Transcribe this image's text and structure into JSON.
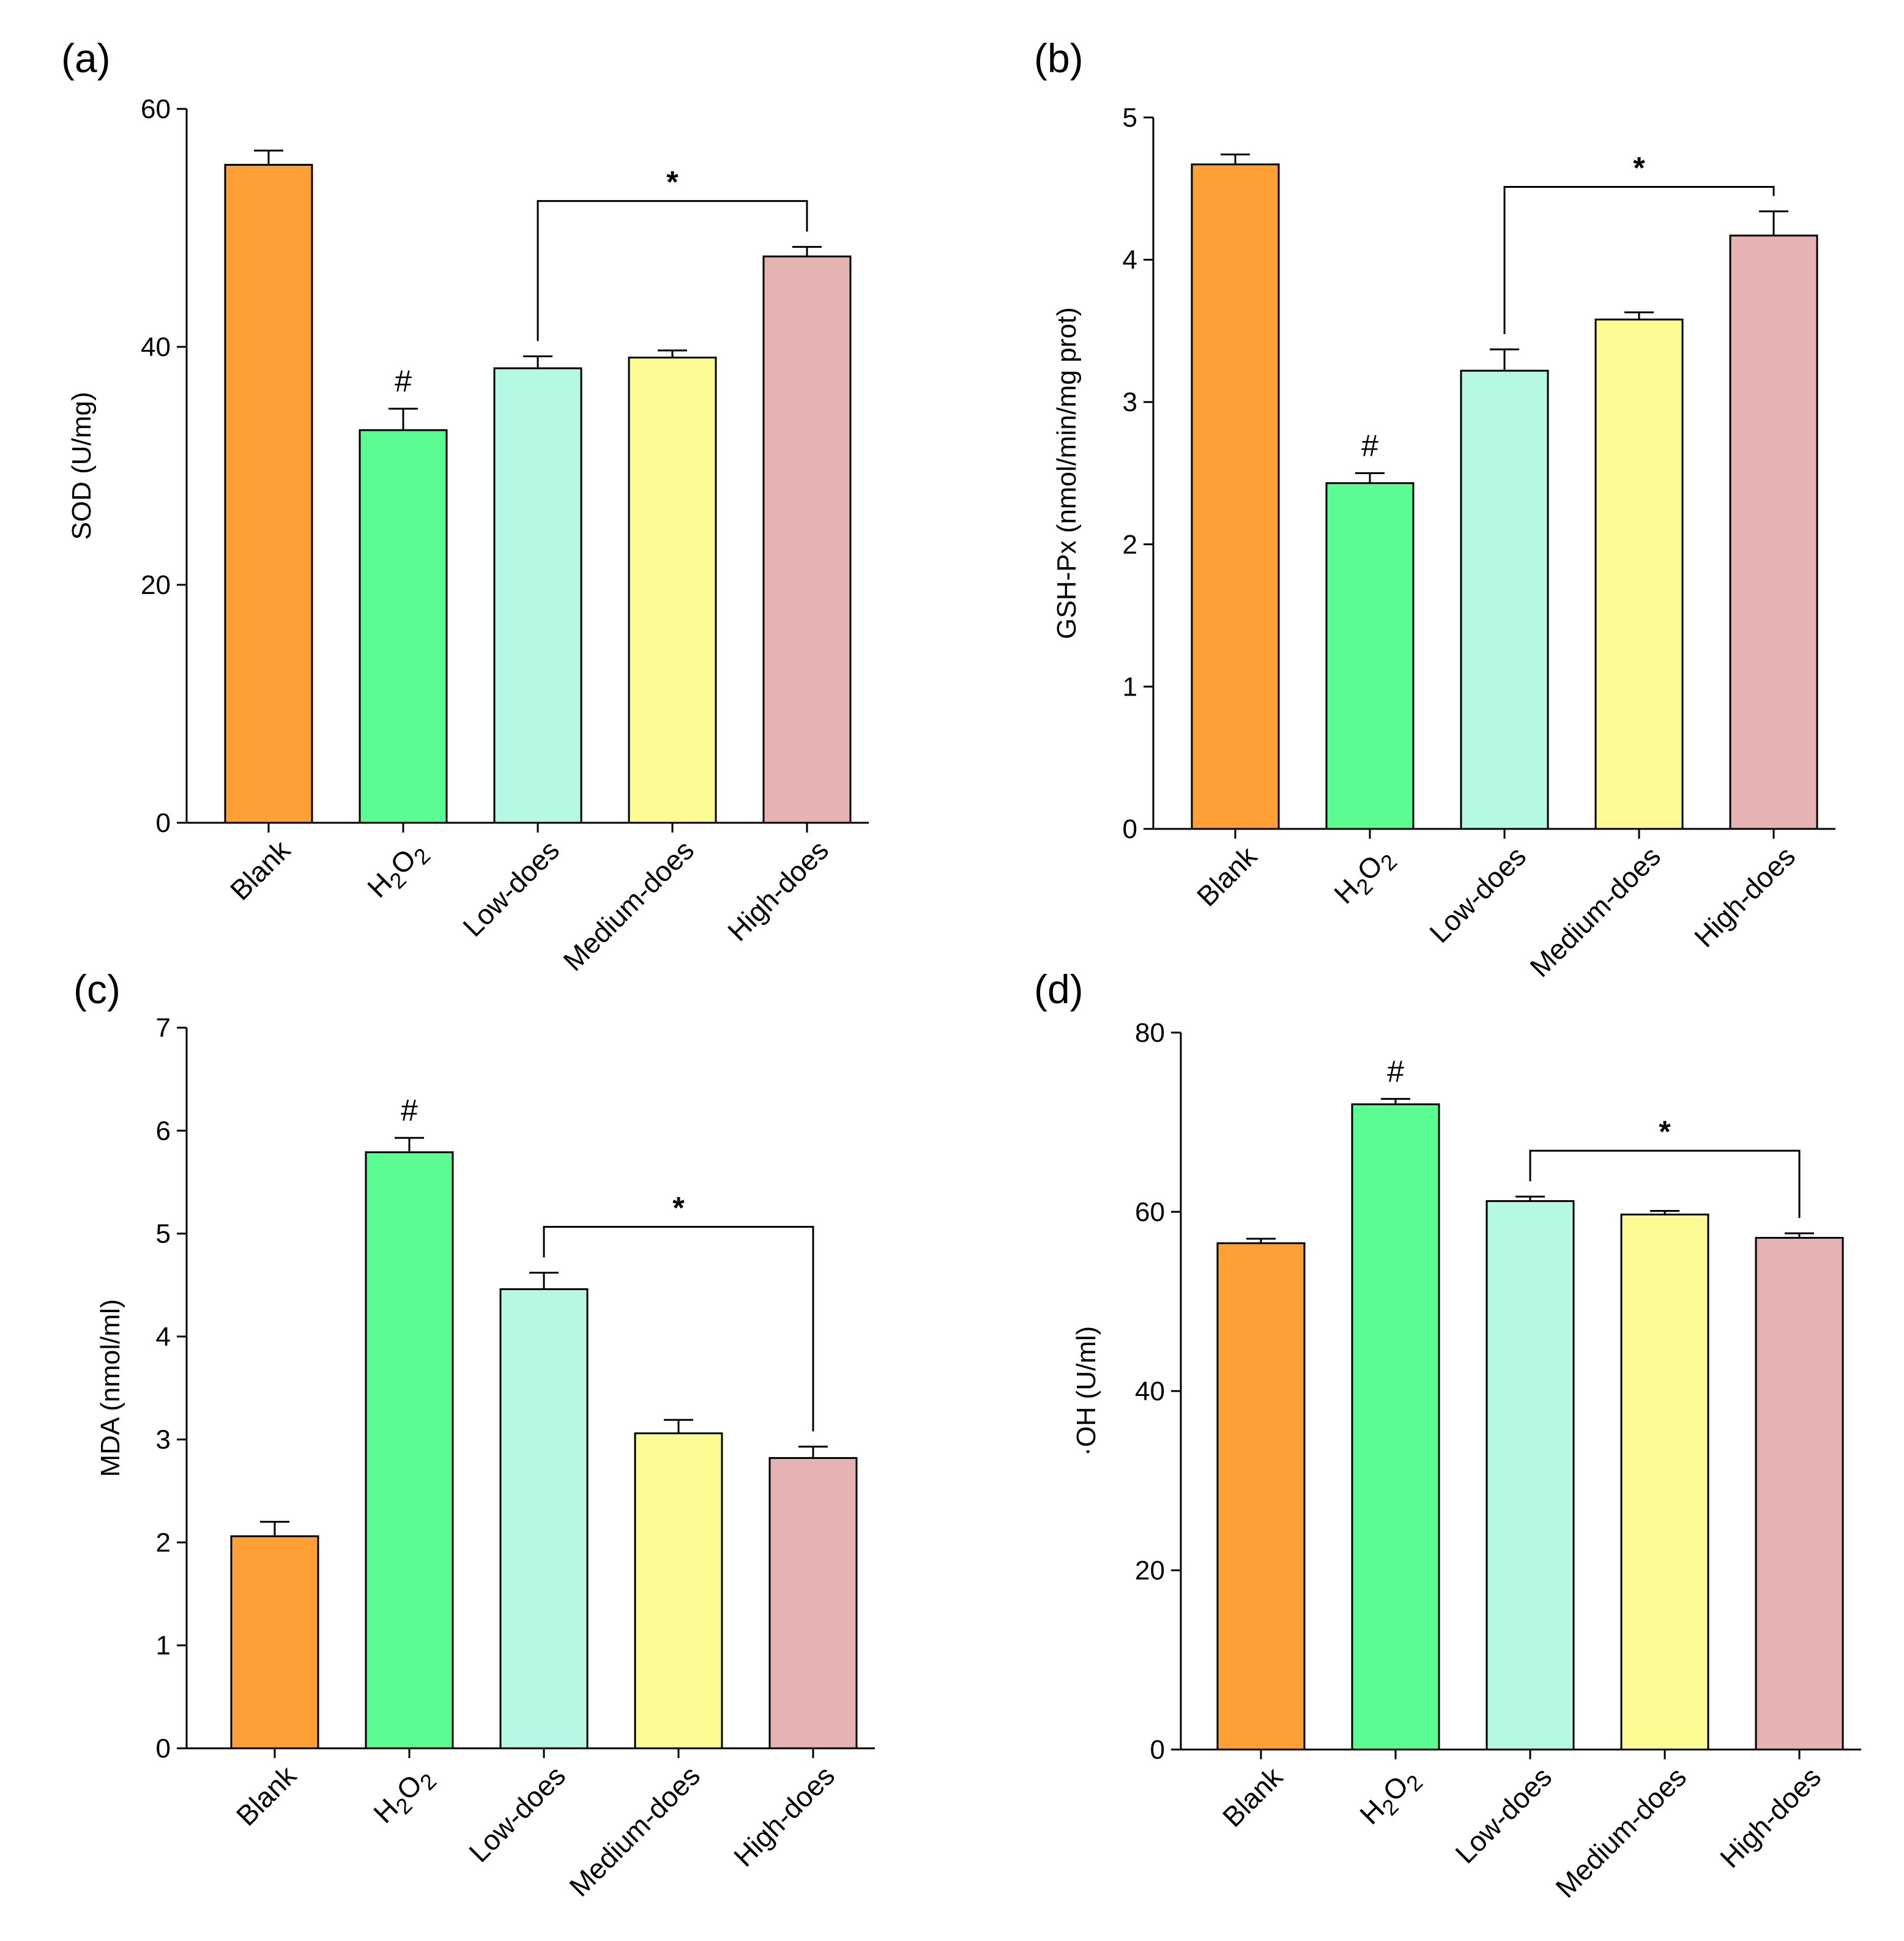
{
  "colors": {
    "Blank": "#fea036",
    "H2O2": "#5bfd92",
    "Low-does": "#b5f8e4",
    "Medium-does": "#fdfc94",
    "High-does": "#e6b3b3"
  },
  "chart_data": [
    {
      "panel": "(a)",
      "type": "bar",
      "categories": [
        "Blank",
        "H2O2",
        "Low-does",
        "Medium-does",
        "High-does"
      ],
      "values": [
        55.3,
        33.0,
        38.2,
        39.1,
        47.6
      ],
      "errors": [
        1.2,
        1.8,
        1.0,
        0.6,
        0.8
      ],
      "ylabel": "SOD (U/mg)",
      "ylim": [
        0,
        60
      ],
      "yticks": [
        0,
        20,
        40,
        60
      ],
      "annotations": [
        {
          "text": "#",
          "category": "H2O2"
        }
      ],
      "significance": {
        "from": "Low-does",
        "to": "High-does",
        "text": "*"
      }
    },
    {
      "panel": "(b)",
      "type": "bar",
      "categories": [
        "Blank",
        "H2O2",
        "Low-does",
        "Medium-does",
        "High-does"
      ],
      "values": [
        4.67,
        2.43,
        3.22,
        3.58,
        4.17
      ],
      "errors": [
        0.07,
        0.07,
        0.15,
        0.05,
        0.17
      ],
      "ylabel": "GSH-Px (nmol/min/mg prot)",
      "ylim": [
        0,
        5
      ],
      "yticks": [
        0,
        1,
        2,
        3,
        4,
        5
      ],
      "annotations": [
        {
          "text": "#",
          "category": "H2O2"
        }
      ],
      "significance": {
        "from": "Low-does",
        "to": "High-does",
        "text": "*"
      }
    },
    {
      "panel": "(c)",
      "type": "bar",
      "categories": [
        "Blank",
        "H2O2",
        "Low-does",
        "Medium-does",
        "High-does"
      ],
      "values": [
        2.06,
        5.79,
        4.46,
        3.06,
        2.82
      ],
      "errors": [
        0.14,
        0.14,
        0.16,
        0.13,
        0.11
      ],
      "ylabel": "MDA (nmol/ml)",
      "ylim": [
        0,
        7
      ],
      "yticks": [
        0,
        1,
        2,
        3,
        4,
        5,
        6,
        7
      ],
      "annotations": [
        {
          "text": "#",
          "category": "H2O2"
        }
      ],
      "significance": {
        "from": "Low-does",
        "to": "High-does",
        "text": "*"
      }
    },
    {
      "panel": "(d)",
      "type": "bar",
      "categories": [
        "Blank",
        "H2O2",
        "Low-does",
        "Medium-does",
        "High-does"
      ],
      "values": [
        56.5,
        72.0,
        61.2,
        59.7,
        57.1
      ],
      "errors": [
        0.5,
        0.6,
        0.5,
        0.4,
        0.5
      ],
      "ylabel": "·OH (U/ml)",
      "ylim": [
        0,
        80
      ],
      "yticks": [
        0,
        20,
        40,
        60,
        80
      ],
      "annotations": [
        {
          "text": "#",
          "category": "H2O2"
        }
      ],
      "significance": {
        "from": "Low-does",
        "to": "High-does",
        "text": "*"
      }
    }
  ]
}
